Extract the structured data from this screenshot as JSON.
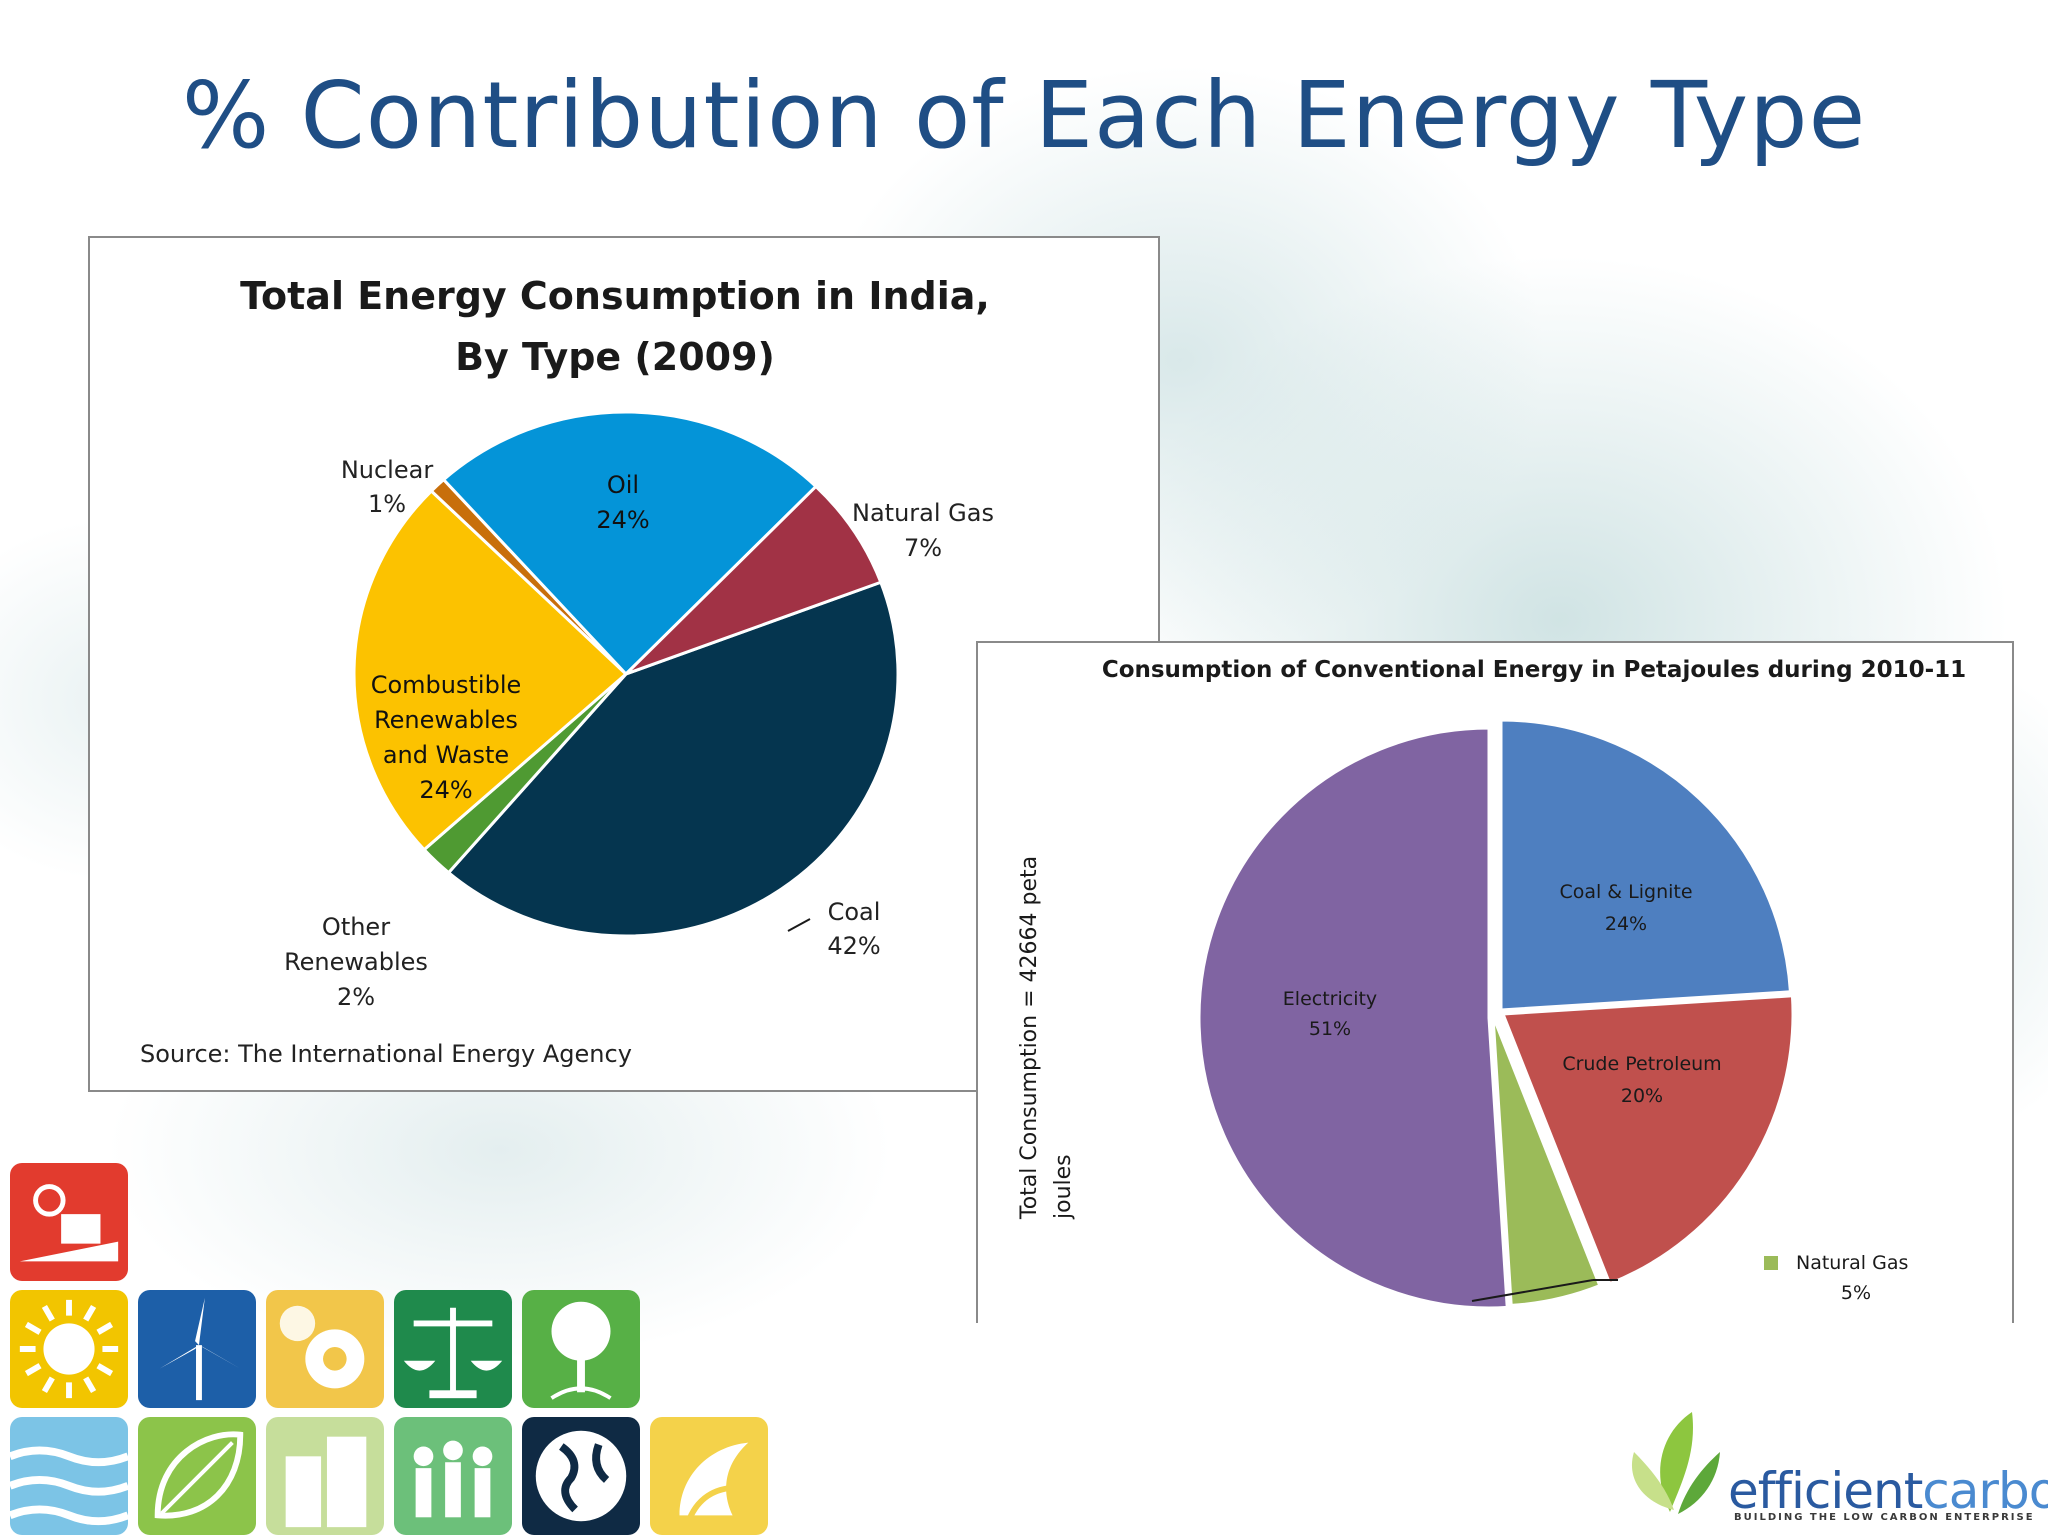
{
  "slide": {
    "title": "% Contribution of Each Energy Type"
  },
  "chart_data": [
    {
      "type": "pie",
      "title": "Total Energy Consumption in India,",
      "subtitle": "By Type (2009)",
      "source": "Source: The International Energy Agency",
      "slices": [
        {
          "name": "Coal",
          "value": 42,
          "label": "42%",
          "color": "#05354f"
        },
        {
          "name": "Other Renewables",
          "label_lines": [
            "Other",
            "Renewables"
          ],
          "value": 2,
          "label": "2%",
          "color": "#4f9a32"
        },
        {
          "name": "Combustible Renewables and Waste",
          "label_lines": [
            "Combustible",
            "Renewables",
            "and Waste"
          ],
          "value": 24,
          "label": "24%",
          "color": "#fcc200"
        },
        {
          "name": "Nuclear",
          "value": 1,
          "label": "1%",
          "color": "#c86f0b"
        },
        {
          "name": "Oil",
          "value": 24,
          "label": "24%",
          "color": "#0494d8"
        },
        {
          "name": "Natural Gas",
          "value": 7,
          "label": "7%",
          "color": "#a13245"
        }
      ]
    },
    {
      "type": "pie",
      "title": "Consumption of Conventional Energy in Petajoules during 2010-11",
      "ylabel_lines": [
        "Total Consumption = 42664 peta",
        "joules"
      ],
      "slices": [
        {
          "name": "Coal & Lignite",
          "value": 24,
          "label": "24%",
          "color": "#4e7fc0"
        },
        {
          "name": "Crude Petroleum",
          "value": 20,
          "label": "20%",
          "color": "#c0504d"
        },
        {
          "name": "Natural Gas",
          "value": 5,
          "label": "5%",
          "color": "#9bbb59"
        },
        {
          "name": "Electricity",
          "value": 51,
          "label": "51%",
          "color": "#8064a2"
        }
      ]
    }
  ],
  "branding": {
    "logo_word_1": "efficient",
    "logo_word_2": "carbon",
    "tagline": "BUILDING THE LOW CARBON ENTERPRISE",
    "tiles": [
      {
        "icon": "factory-worker-icon",
        "color": "#e23b2e"
      },
      {
        "icon": "sun-icon",
        "color": "#f2c500"
      },
      {
        "icon": "wind-turbine-icon",
        "color": "#1d5fa8"
      },
      {
        "icon": "gears-icon",
        "color": "#f2c64a"
      },
      {
        "icon": "balance-scale-icon",
        "color": "#1f8a4c"
      },
      {
        "icon": "tree-icon",
        "color": "#57b046"
      },
      {
        "icon": "water-waves-icon",
        "color": "#7cc4e6"
      },
      {
        "icon": "leaf-icon",
        "color": "#8cc44a"
      },
      {
        "icon": "buildings-icon",
        "color": "#c6de9b"
      },
      {
        "icon": "people-icon",
        "color": "#6cc07a"
      },
      {
        "icon": "globe-icon",
        "color": "#0f2a44"
      },
      {
        "icon": "swirl-icon",
        "color": "#f4d24a"
      }
    ]
  }
}
